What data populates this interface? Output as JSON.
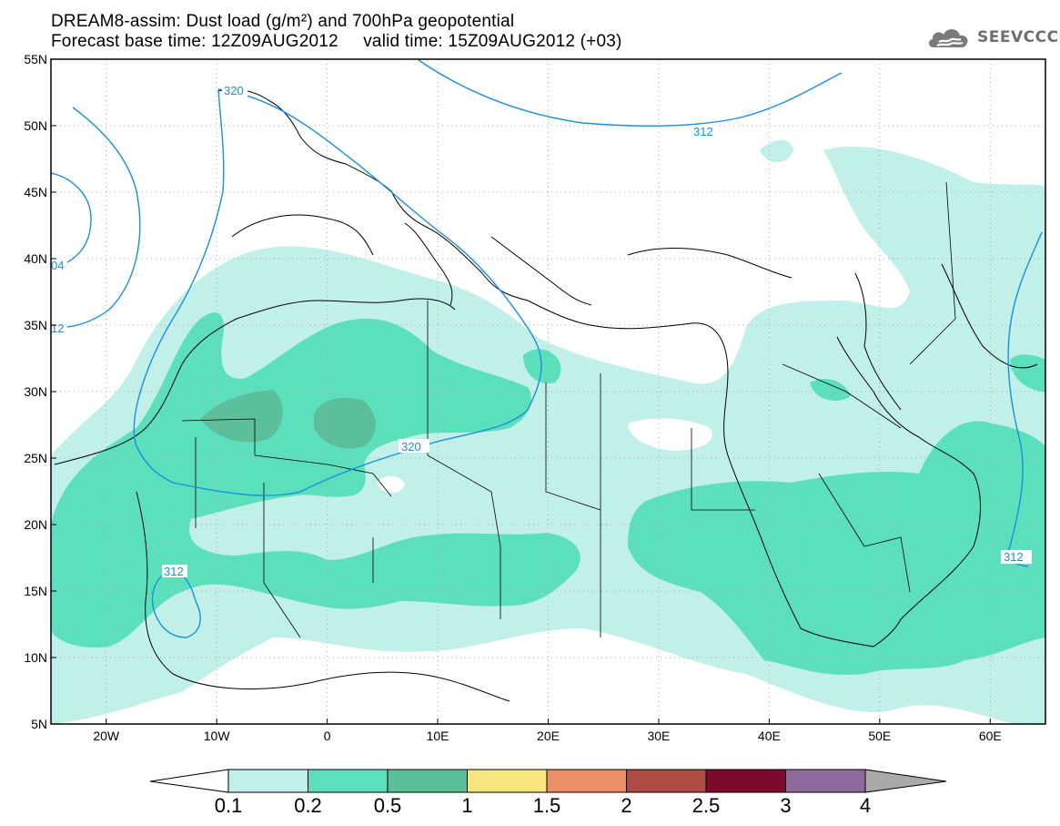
{
  "title": {
    "line1": "DREAM8-assim: Dust load (g/m²) and 700hPa geopotential",
    "line2": "Forecast base time: 12Z09AUG2012     valid time: 15Z09AUG2012 (+03)"
  },
  "logo": {
    "text": "SEEVCCC",
    "icon": "cloud-logo-icon"
  },
  "map": {
    "lon_range": [
      -25,
      65
    ],
    "lat_range": [
      5,
      55
    ],
    "lat_ticks": [
      "5N",
      "10N",
      "15N",
      "20N",
      "25N",
      "30N",
      "35N",
      "40N",
      "45N",
      "50N",
      "55N"
    ],
    "lon_ticks": [
      "20W",
      "10W",
      "0",
      "10E",
      "20E",
      "30E",
      "40E",
      "50E",
      "60E"
    ],
    "grid": "dotted",
    "contour_labels": [
      "320",
      "312",
      "320",
      "312",
      "312",
      "04",
      "12"
    ],
    "colors": {
      "contour": "#1a8fe0",
      "coast": "#000000"
    }
  },
  "colorbar": {
    "labels": [
      "0.1",
      "0.2",
      "0.5",
      "1",
      "1.5",
      "2",
      "2.5",
      "3",
      "4"
    ],
    "colors": [
      "#c0f0e8",
      "#5ce0bc",
      "#5abf9a",
      "#f5e77e",
      "#ec8e66",
      "#ad4c42",
      "#7c0a2c",
      "#8f6a9d"
    ],
    "under_color": "#ffffff",
    "over_color": "#aaaaaa"
  }
}
